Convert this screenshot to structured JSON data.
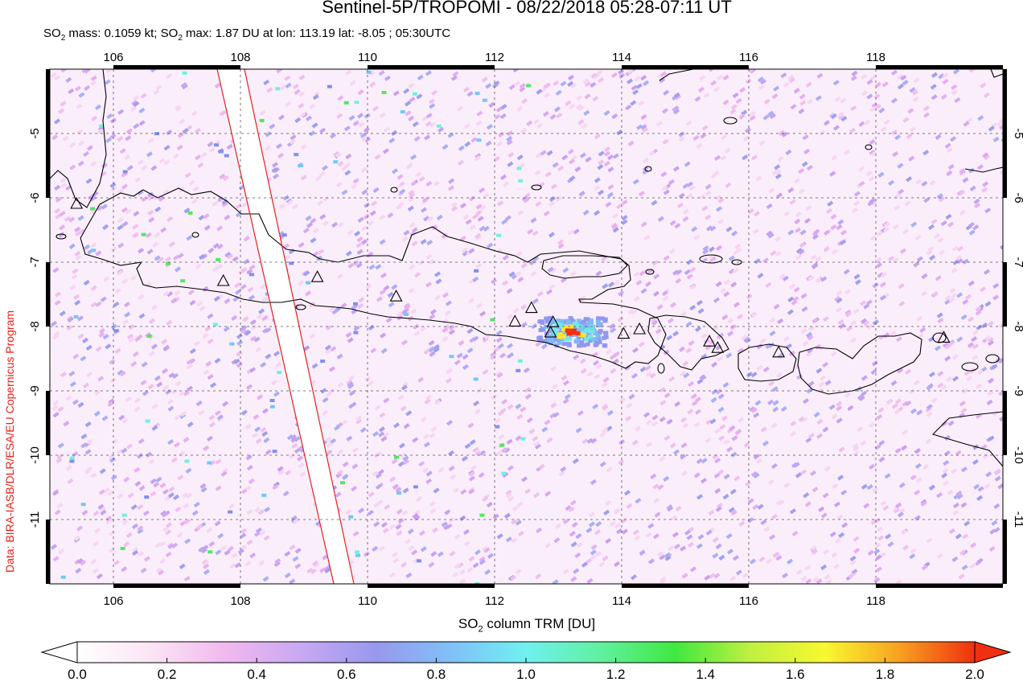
{
  "title": "Sentinel-5P/TROPOMI - 08/22/2018 05:28-07:11 UT",
  "subtitle": {
    "part1": "SO",
    "sub1": "2",
    "part2": " mass: 0.1059 kt; SO",
    "sub2": "2",
    "part3": " max: 1.87 DU at lon: 113.19 lat: -8.05 ; 05:30UTC"
  },
  "credit": "Data: BIRA-IASB/DLR/ESA/EU Copernicus Program",
  "map": {
    "lon_range": [
      105.0,
      120.0
    ],
    "lat_range": [
      -12.0,
      -4.0
    ],
    "lon_ticks": [
      "106",
      "108",
      "110",
      "112",
      "114",
      "116",
      "118"
    ],
    "lat_ticks": [
      "-5",
      "-6",
      "-7",
      "-8",
      "-9",
      "-10",
      "-11"
    ],
    "lon_tick_values": [
      106,
      108,
      110,
      112,
      114,
      116,
      118
    ],
    "lat_tick_values": [
      -5,
      -6,
      -7,
      -8,
      -9,
      -10,
      -11
    ],
    "volcano_marker": "triangle-icon",
    "volcanoes": [
      {
        "lon": 105.42,
        "lat": -6.1
      },
      {
        "lon": 107.73,
        "lat": -7.3
      },
      {
        "lon": 109.21,
        "lat": -7.24
      },
      {
        "lon": 110.45,
        "lat": -7.54
      },
      {
        "lon": 112.32,
        "lat": -7.93
      },
      {
        "lon": 112.58,
        "lat": -7.72
      },
      {
        "lon": 112.92,
        "lat": -7.94
      },
      {
        "lon": 112.88,
        "lat": -8.1
      },
      {
        "lon": 114.03,
        "lat": -8.12
      },
      {
        "lon": 114.28,
        "lat": -8.05
      },
      {
        "lon": 115.38,
        "lat": -8.24
      },
      {
        "lon": 115.51,
        "lat": -8.34
      },
      {
        "lon": 116.47,
        "lat": -8.41
      },
      {
        "lon": 119.07,
        "lat": -8.18
      }
    ],
    "swath_edge_color": "#e8201a",
    "coastline_color": "#000000"
  },
  "colorbar": {
    "label_prefix": "SO",
    "label_sub": "2",
    "label_suffix": " column TRM [DU]",
    "ticks": [
      "0.0",
      "0.2",
      "0.4",
      "0.6",
      "0.8",
      "1.0",
      "1.2",
      "1.4",
      "1.6",
      "1.8",
      "2.0"
    ],
    "range": [
      0.0,
      2.0
    ],
    "colors": [
      "#ffffff",
      "#fbe4f4",
      "#f0b8ee",
      "#c8a8f2",
      "#9898ee",
      "#80c0f8",
      "#70f0f0",
      "#60f0a0",
      "#40e840",
      "#c0f040",
      "#f8f830",
      "#f8a020",
      "#f03010"
    ],
    "under_color": "#ffffff",
    "over_color": "#f03010"
  }
}
